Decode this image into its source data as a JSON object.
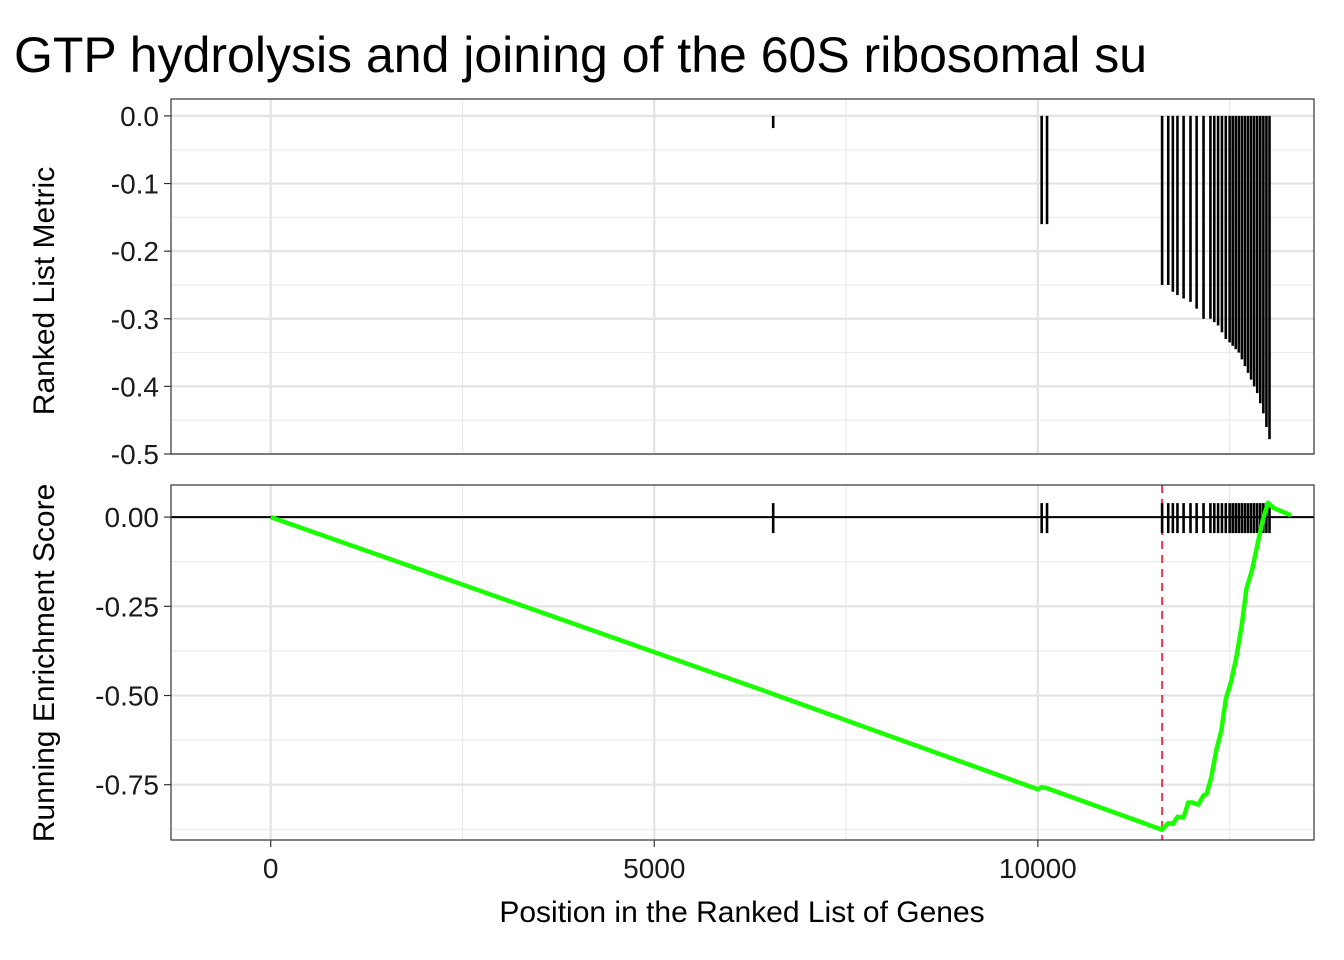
{
  "chart_data": {
    "type": "line",
    "title": "GTP hydrolysis and joining of the 60S ribosomal su",
    "xlabel": "Position in the Ranked List of Genes",
    "xlim": [
      -1300,
      13600
    ],
    "x_ticks": [
      "0",
      "5000",
      "10000"
    ],
    "grid": true,
    "hit_positions": [
      6550,
      10050,
      10120,
      11620,
      11700,
      11760,
      11820,
      11900,
      11990,
      12070,
      12160,
      12250,
      12300,
      12350,
      12400,
      12450,
      12500,
      12540,
      12580,
      12620,
      12660,
      12700,
      12740,
      12780,
      12820,
      12860,
      12900,
      12940,
      12980,
      13020
    ],
    "top_panel": {
      "ylabel": "Ranked List Metric",
      "ylim": [
        -0.5,
        0.025
      ],
      "y_ticks": [
        "0.0",
        "-0.1",
        "-0.2",
        "-0.3",
        "-0.4",
        "-0.5"
      ],
      "ranked_metric": [
        -0.018,
        -0.16,
        -0.16,
        -0.25,
        -0.25,
        -0.26,
        -0.265,
        -0.27,
        -0.275,
        -0.285,
        -0.3,
        -0.3,
        -0.305,
        -0.31,
        -0.32,
        -0.33,
        -0.335,
        -0.34,
        -0.345,
        -0.35,
        -0.36,
        -0.37,
        -0.38,
        -0.39,
        -0.4,
        -0.41,
        -0.425,
        -0.44,
        -0.46,
        -0.478
      ]
    },
    "bottom_panel": {
      "ylabel": "Running Enrichment Score",
      "ylim": [
        -0.905,
        0.09
      ],
      "y_ticks": [
        "0.00",
        "-0.25",
        "-0.50",
        "-0.75"
      ],
      "series": [
        {
          "color": "#1aff00",
          "x": [
            0,
            6540,
            6560,
            10000,
            10050,
            10120,
            11620,
            11700,
            11760,
            11820,
            11900,
            11960,
            12020,
            12090,
            12160,
            12200,
            12260,
            12330,
            12390,
            12450,
            12520,
            12590,
            12660,
            12720,
            12790,
            12860,
            12930,
            13000,
            13050,
            13080,
            13300
          ],
          "y": [
            0,
            -0.495,
            -0.497,
            -0.763,
            -0.757,
            -0.76,
            -0.876,
            -0.858,
            -0.86,
            -0.84,
            -0.842,
            -0.8,
            -0.8,
            -0.806,
            -0.78,
            -0.776,
            -0.73,
            -0.65,
            -0.6,
            -0.51,
            -0.46,
            -0.39,
            -0.3,
            -0.2,
            -0.15,
            -0.08,
            -0.01,
            0.04,
            0.03,
            0.025,
            0.005
          ]
        }
      ],
      "zero_line": 0,
      "max_deviation_x": 11620,
      "max_deviation_color": "#e8384f"
    }
  }
}
